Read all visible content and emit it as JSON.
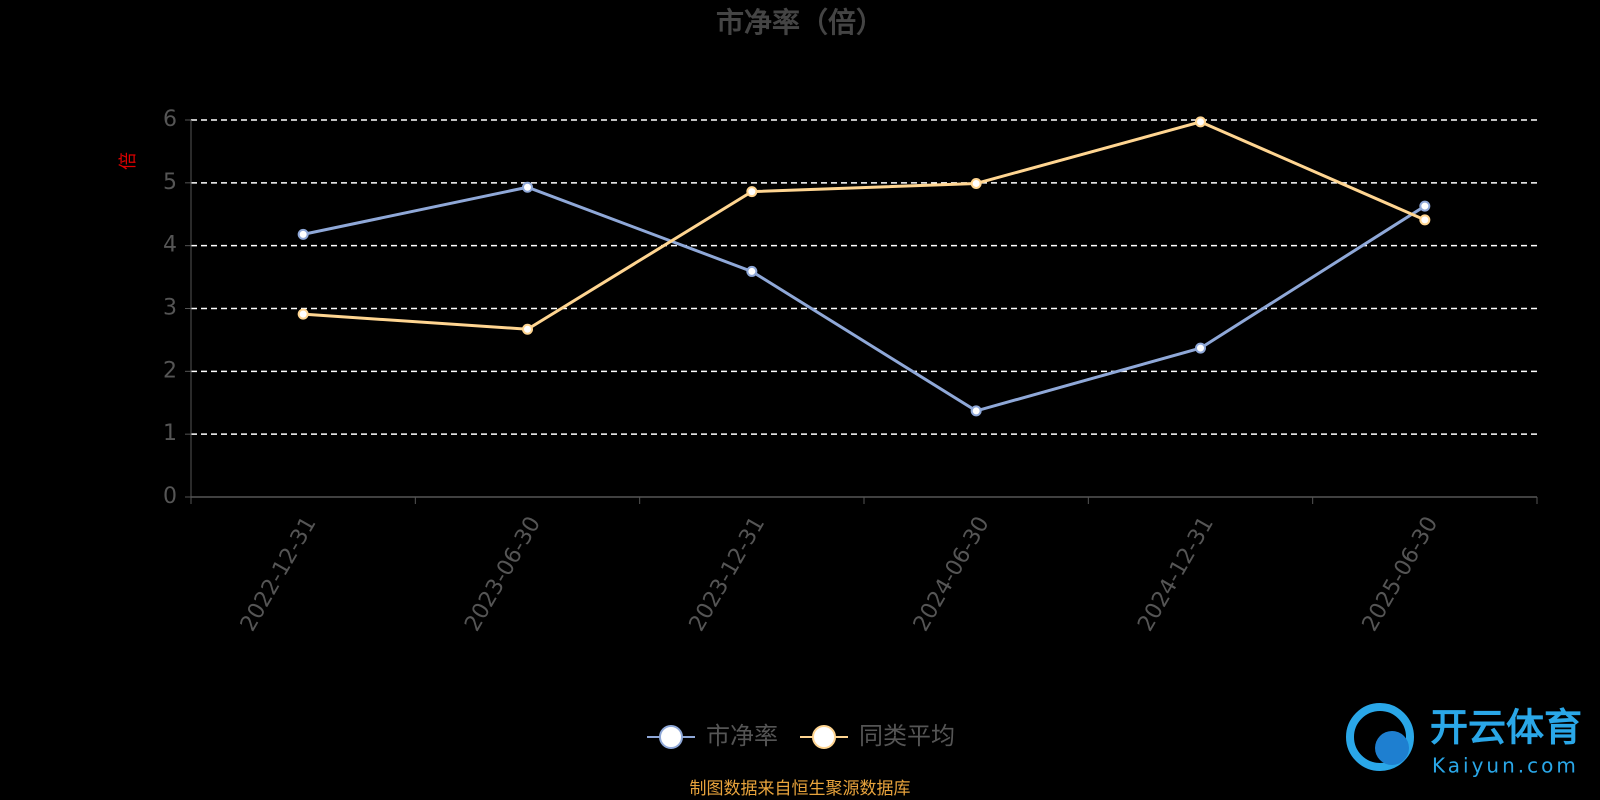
{
  "chart_data": {
    "type": "line",
    "title": "市净率（倍）",
    "y_label": "倍",
    "categories": [
      "2022-12-31",
      "2023-06-30",
      "2023-12-31",
      "2024-06-30",
      "2024-12-31",
      "2025-06-30"
    ],
    "series": [
      {
        "name": "市净率",
        "color": "#8fa8d8",
        "values": [
          4.18,
          4.93,
          3.59,
          1.37,
          2.37,
          4.63
        ]
      },
      {
        "name": "同类平均",
        "color": "#ffd591",
        "values": [
          2.91,
          2.67,
          4.86,
          4.99,
          5.97,
          4.41
        ]
      }
    ],
    "ylim": [
      0,
      6
    ],
    "yticks": [
      0,
      1,
      2,
      3,
      4,
      5,
      6
    ],
    "grid": true,
    "source": "制图数据来自恒生聚源数据库",
    "watermark": {
      "brand": "开云体育",
      "site": "Kaiyun.com"
    }
  }
}
